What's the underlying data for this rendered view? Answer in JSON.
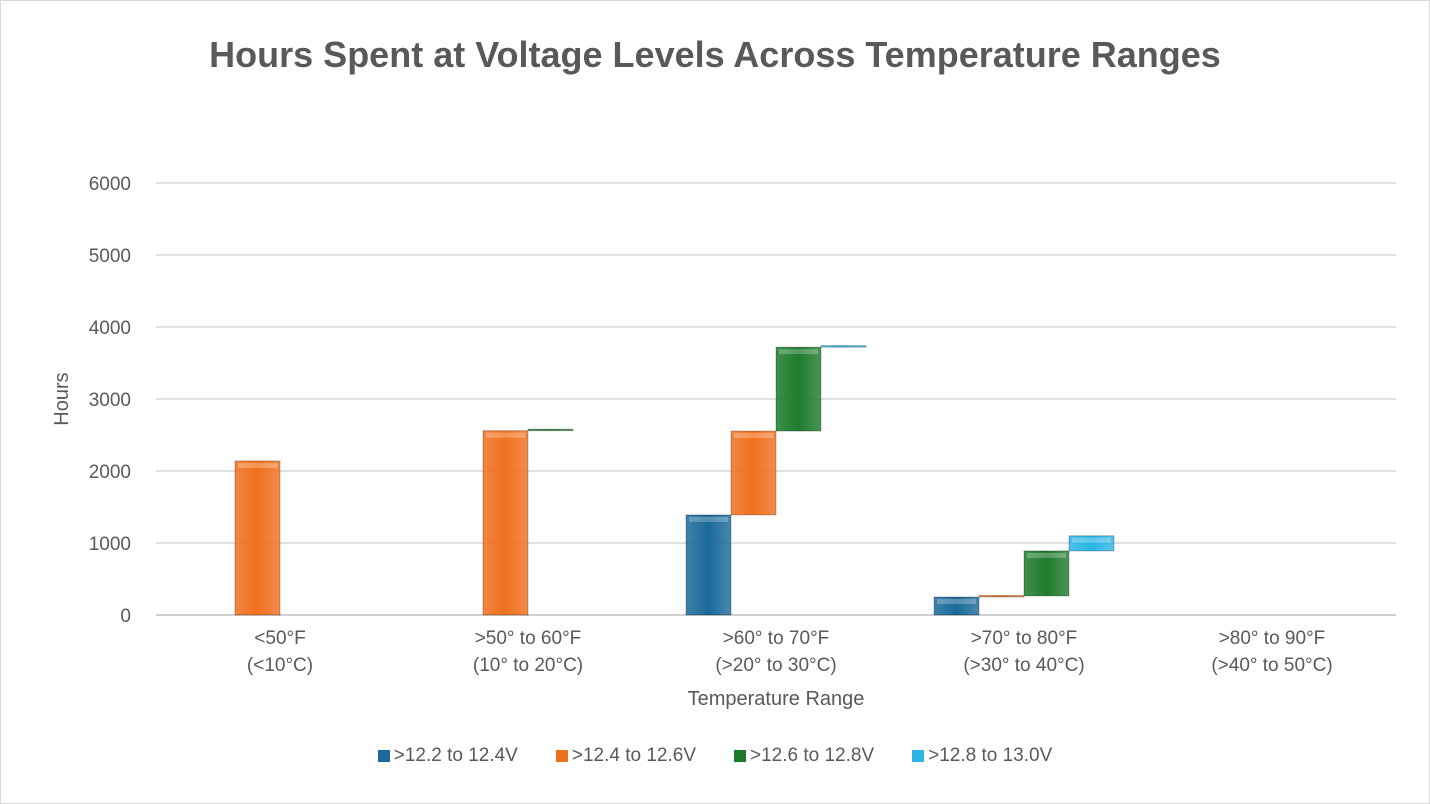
{
  "chart_data": {
    "type": "bar",
    "subtype": "stacked-waterfall (floating stacked bars, series placed side by side)",
    "title": "Hours Spent at Voltage Levels Across Temperature Ranges",
    "xlabel": "Temperature Range",
    "ylabel": "Hours",
    "ylim": [
      0,
      6000
    ],
    "yticks": [
      0,
      1000,
      2000,
      3000,
      4000,
      5000,
      6000
    ],
    "grid": true,
    "legend_position": "bottom",
    "categories": [
      [
        "<50°F",
        "(<10°C)"
      ],
      [
        ">50° to 60°F",
        "(10° to 20°C)"
      ],
      [
        ">60° to 70°F",
        "(>20° to 30°C)"
      ],
      [
        ">70° to 80°F",
        "(>30° to 40°C)"
      ],
      [
        ">80° to 90°F",
        "(>40° to 50°C)"
      ]
    ],
    "series": [
      {
        "name": ">12.2 to 12.4V",
        "color": "#1b6a99",
        "values": [
          0,
          0,
          1390,
          250,
          0
        ]
      },
      {
        "name": ">12.4 to 12.6V",
        "color": "#f0701e",
        "values": [
          2140,
          2560,
          1165,
          15,
          0
        ]
      },
      {
        "name": ">12.6 to 12.8V",
        "color": "#1e7b2c",
        "values": [
          0,
          20,
          1165,
          625,
          0
        ]
      },
      {
        "name": ">12.8 to 13.0V",
        "color": "#2ab5e6",
        "values": [
          0,
          0,
          10,
          210,
          0
        ]
      }
    ]
  }
}
